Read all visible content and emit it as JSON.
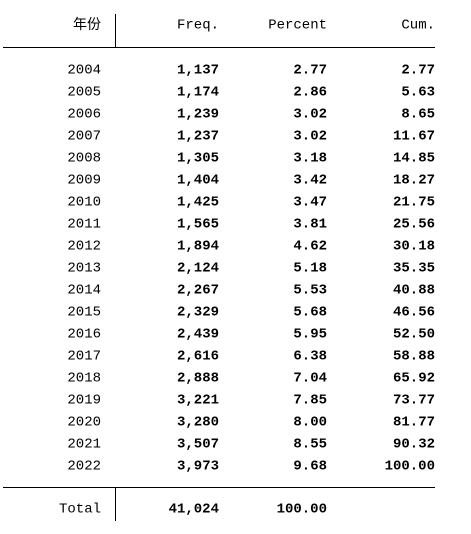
{
  "table": {
    "header": [
      "年份",
      "Freq.",
      "Percent",
      "Cum."
    ],
    "rows": [
      [
        "2004",
        "1,137",
        "2.77",
        "2.77"
      ],
      [
        "2005",
        "1,174",
        "2.86",
        "5.63"
      ],
      [
        "2006",
        "1,239",
        "3.02",
        "8.65"
      ],
      [
        "2007",
        "1,237",
        "3.02",
        "11.67"
      ],
      [
        "2008",
        "1,305",
        "3.18",
        "14.85"
      ],
      [
        "2009",
        "1,404",
        "3.42",
        "18.27"
      ],
      [
        "2010",
        "1,425",
        "3.47",
        "21.75"
      ],
      [
        "2011",
        "1,565",
        "3.81",
        "25.56"
      ],
      [
        "2012",
        "1,894",
        "4.62",
        "30.18"
      ],
      [
        "2013",
        "2,124",
        "5.18",
        "35.35"
      ],
      [
        "2014",
        "2,267",
        "5.53",
        "40.88"
      ],
      [
        "2015",
        "2,329",
        "5.68",
        "46.56"
      ],
      [
        "2016",
        "2,439",
        "5.95",
        "52.50"
      ],
      [
        "2017",
        "2,616",
        "6.38",
        "58.88"
      ],
      [
        "2018",
        "2,888",
        "7.04",
        "65.92"
      ],
      [
        "2019",
        "3,221",
        "7.85",
        "73.77"
      ],
      [
        "2020",
        "3,280",
        "8.00",
        "81.77"
      ],
      [
        "2021",
        "3,507",
        "8.55",
        "90.32"
      ],
      [
        "2022",
        "3,973",
        "9.68",
        "100.00"
      ]
    ],
    "total": [
      "Total",
      "41,024",
      "100.00"
    ]
  }
}
